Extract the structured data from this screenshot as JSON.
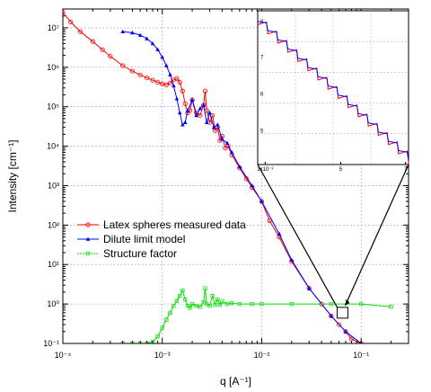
{
  "chart_data": {
    "type": "line",
    "xlabel": "q [A⁻¹]",
    "ylabel": "Intensity [cm⁻¹]",
    "xscale": "log",
    "yscale": "log",
    "xlim": [
      0.0001,
      0.3
    ],
    "ylim": [
      0.1,
      30000000
    ],
    "grid": true,
    "legend_position": "center-left",
    "x_ticks": [
      "10⁻⁴",
      "10⁻³",
      "10⁻²",
      "10⁻¹"
    ],
    "y_ticks": [
      "10⁻¹",
      "10⁰",
      "10¹",
      "10²",
      "10³",
      "10⁴",
      "10⁵",
      "10⁶",
      "10⁷"
    ],
    "series": [
      {
        "name": "Latex spheres measured data",
        "color": "#ff0000",
        "marker": "open-circle",
        "x": [
          0.0001,
          0.00012,
          0.00015,
          0.0002,
          0.00025,
          0.0003,
          0.0004,
          0.0005,
          0.0006,
          0.0007,
          0.0008,
          0.0009,
          0.001,
          0.0011,
          0.0012,
          0.0013,
          0.0014,
          0.0015,
          0.0016,
          0.0017,
          0.0018,
          0.0019,
          0.002,
          0.0022,
          0.0024,
          0.0026,
          0.0027,
          0.0028,
          0.003,
          0.0032,
          0.0034,
          0.0036,
          0.0038,
          0.004,
          0.0043,
          0.0046,
          0.005,
          0.006,
          0.007,
          0.008,
          0.01,
          0.012,
          0.015,
          0.02,
          0.03,
          0.04,
          0.05,
          0.06,
          0.07,
          0.08,
          0.1,
          0.12,
          0.15,
          0.2,
          0.25,
          0.3
        ],
        "y": [
          25000000,
          14000000,
          8000000,
          4500000,
          2800000,
          1900000,
          1100000,
          800000,
          640000,
          540000,
          470000,
          420000,
          380000,
          360000,
          400000,
          480000,
          520000,
          420000,
          250000,
          120000,
          70000,
          80000,
          150000,
          70000,
          60000,
          110000,
          250000,
          80000,
          40000,
          60000,
          25000,
          30000,
          14000,
          18000,
          9000,
          10000,
          6000,
          2800,
          1500,
          900,
          400,
          130,
          50,
          12,
          2.5,
          1.0,
          0.5,
          0.3,
          0.2,
          0.13,
          0.1,
          0.09,
          0.08,
          0.07,
          0.06,
          0.055
        ]
      },
      {
        "name": "Dilute limit model",
        "color": "#0000ff",
        "marker": "filled-triangle",
        "x": [
          0.0004,
          0.0005,
          0.0006,
          0.0007,
          0.0008,
          0.0009,
          0.001,
          0.0011,
          0.0012,
          0.0013,
          0.0014,
          0.0015,
          0.0016,
          0.0017,
          0.0018,
          0.002,
          0.0022,
          0.0024,
          0.0026,
          0.0028,
          0.003,
          0.0033,
          0.0036,
          0.004,
          0.0045,
          0.005,
          0.006,
          0.008,
          0.01,
          0.015,
          0.02,
          0.03,
          0.05,
          0.07,
          0.1
        ],
        "y": [
          8000000,
          7500000,
          6500000,
          5300000,
          4000000,
          2800000,
          1800000,
          1100000,
          650000,
          340000,
          160000,
          70000,
          35000,
          40000,
          80000,
          150000,
          60000,
          90000,
          110000,
          40000,
          70000,
          30000,
          35000,
          15000,
          12000,
          7000,
          3000,
          1000,
          400,
          60,
          13,
          2.5,
          0.5,
          0.2,
          0.1
        ]
      },
      {
        "name": "Structure factor",
        "color": "#00dd00",
        "marker": "open-square",
        "x": [
          0.0004,
          0.0005,
          0.0006,
          0.0007,
          0.0008,
          0.0009,
          0.001,
          0.0011,
          0.0012,
          0.0013,
          0.0014,
          0.0015,
          0.0016,
          0.0017,
          0.0018,
          0.0019,
          0.002,
          0.0022,
          0.0024,
          0.0026,
          0.0027,
          0.0028,
          0.003,
          0.0032,
          0.0034,
          0.0036,
          0.0038,
          0.004,
          0.0045,
          0.005,
          0.006,
          0.008,
          0.01,
          0.02,
          0.05,
          0.1,
          0.2
        ],
        "y": [
          0.1,
          0.1,
          0.1,
          0.1,
          0.11,
          0.15,
          0.25,
          0.4,
          0.6,
          0.9,
          1.2,
          1.6,
          2.2,
          1.3,
          0.9,
          0.8,
          1.0,
          0.9,
          0.85,
          1.1,
          2.5,
          1.0,
          0.9,
          1.6,
          0.95,
          1.3,
          0.95,
          1.15,
          1.0,
          1.05,
          1.0,
          1.0,
          1.0,
          1.0,
          1.0,
          1.0,
          0.85
        ]
      }
    ],
    "inset": {
      "type": "line",
      "x_tick_labels": [
        "3x10⁻²",
        "5",
        "7"
      ],
      "y_tick_labels": [
        "5",
        "6",
        "7",
        "8"
      ],
      "series": [
        {
          "name": "Latex spheres measured data",
          "color": "#ff0000"
        },
        {
          "name": "Dilute limit model",
          "color": "#0000ff"
        }
      ]
    },
    "annotations": [
      {
        "type": "zoom-box",
        "target": "inset",
        "q": 0.065
      }
    ]
  }
}
